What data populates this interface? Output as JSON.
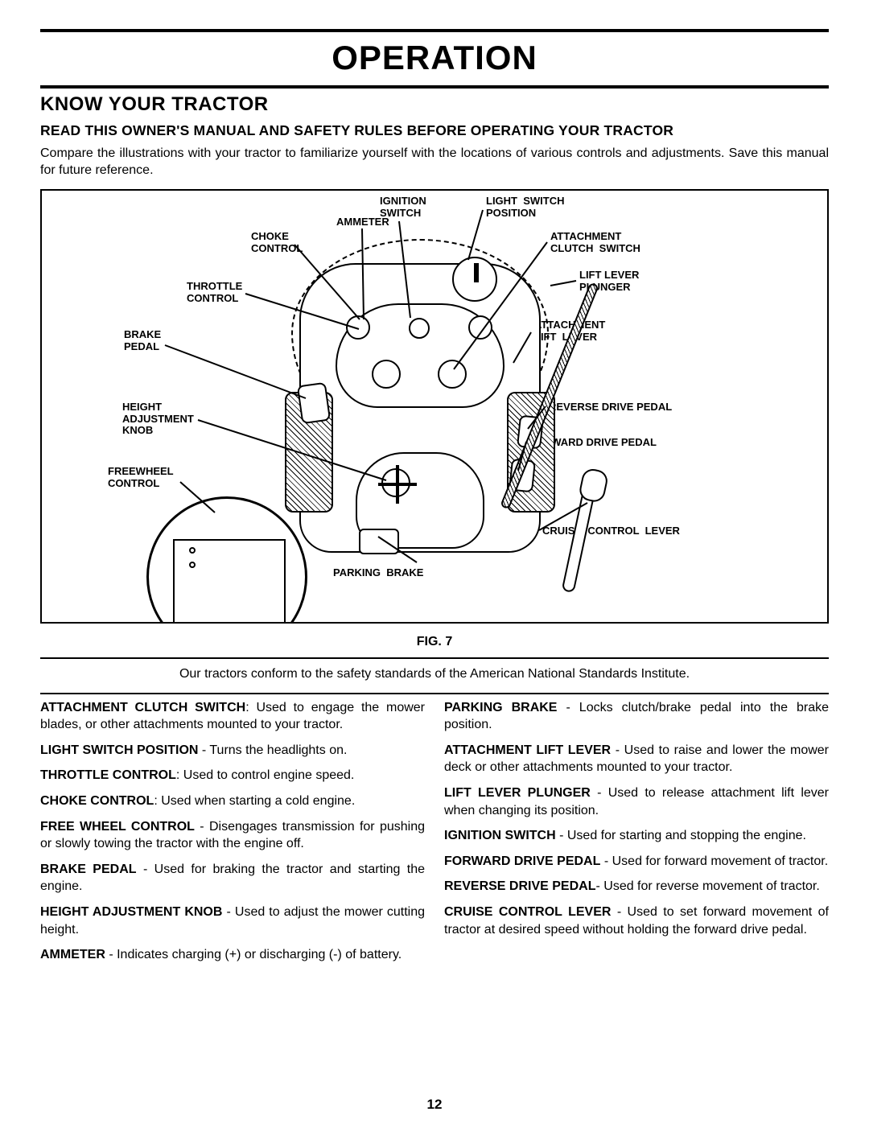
{
  "title": "OPERATION",
  "subhead": "KNOW YOUR TRACTOR",
  "warn": "READ THIS OWNER'S MANUAL AND SAFETY RULES BEFORE OPERATING YOUR TRACTOR",
  "intro": "Compare the illustrations with your tractor to familiarize yourself with the locations of various controls and adjustments.  Save this manual for future reference.",
  "fig_caption": "FIG. 7",
  "conform": "Our tractors conform to the safety standards of the American National Standards Institute.",
  "labels": {
    "ignition_switch": "IGNITION\nSWITCH",
    "ammeter": "AMMETER",
    "choke_control": "CHOKE\nCONTROL",
    "throttle_control": "THROTTLE\nCONTROL",
    "brake_pedal": "BRAKE\nPEDAL",
    "height_adj_knob": "HEIGHT\nADJUSTMENT\nKNOB",
    "freewheel_control": "FREEWHEEL\nCONTROL",
    "parking_brake": "PARKING  BRAKE",
    "light_switch_position": "LIGHT  SWITCH\nPOSITION",
    "attachment_clutch_switch": "ATTACHMENT\nCLUTCH  SWITCH",
    "lift_lever_plunger": "LIFT LEVER\nPLUNGER",
    "attachment_lift_lever": "ATTACHMENT\nLIFT  LEVER",
    "reverse_drive_pedal": "REVERSE DRIVE PEDAL",
    "forward_drive_pedal": "FORWARD DRIVE PEDAL",
    "cruise_control_lever": "CRUISE  CONTROL  LEVER"
  },
  "defs_left": [
    {
      "term": "ATTACHMENT CLUTCH SWITCH",
      "sep": ":  ",
      "text": "Used to engage the mower blades, or other attachments mounted to your tractor."
    },
    {
      "term": "LIGHT SWITCH POSITION",
      "sep": " -  ",
      "text": "Turns the headlights on."
    },
    {
      "term": "THROTTLE CONTROL",
      "sep": ":  ",
      "text": "Used to control engine speed."
    },
    {
      "term": "CHOKE CONTROL",
      "sep": ":  ",
      "text": "Used when  starting a cold engine."
    },
    {
      "term": "FREE WHEEL CONTROL",
      "sep": " - ",
      "text": "Disengages transmission for pushing or slowly towing the tractor with the engine off."
    },
    {
      "term": "BRAKE PEDAL",
      "sep": " -  ",
      "text": "Used for braking the tractor and starting the engine."
    },
    {
      "term": "HEIGHT ADJUSTMENT KNOB",
      "sep": " - ",
      "text": "Used to adjust the mower cutting height."
    },
    {
      "term": "AMMETER",
      "sep": " - ",
      "text": "Indicates charging (+) or discharging (-) of battery."
    }
  ],
  "defs_right": [
    {
      "term": "PARKING BRAKE",
      "sep": " - ",
      "text": "Locks clutch/brake pedal into the brake position."
    },
    {
      "term": "ATTACHMENT LIFT LEVER",
      "sep": " -  ",
      "text": "Used to raise and lower  the mower deck or other attachments mounted to your tractor."
    },
    {
      "term": "LIFT LEVER PLUNGER",
      "sep": " -  ",
      "text": "Used to release attachment lift lever when changing its position."
    },
    {
      "term": "IGNITION SWITCH",
      "sep": " -  ",
      "text": "Used for starting and stopping the engine."
    },
    {
      "term": "FORWARD DRIVE PEDAL",
      "sep": " - ",
      "text": "Used for forward movement of tractor."
    },
    {
      "term": "REVERSE DRIVE PEDAL",
      "sep": "- ",
      "text": "Used for reverse movement of tractor."
    },
    {
      "term": "CRUISE CONTROL LEVER",
      "sep": " - ",
      "text": "Used to set forward movement of tractor at desired speed without holding the forward drive pedal."
    }
  ],
  "page_number": "12"
}
